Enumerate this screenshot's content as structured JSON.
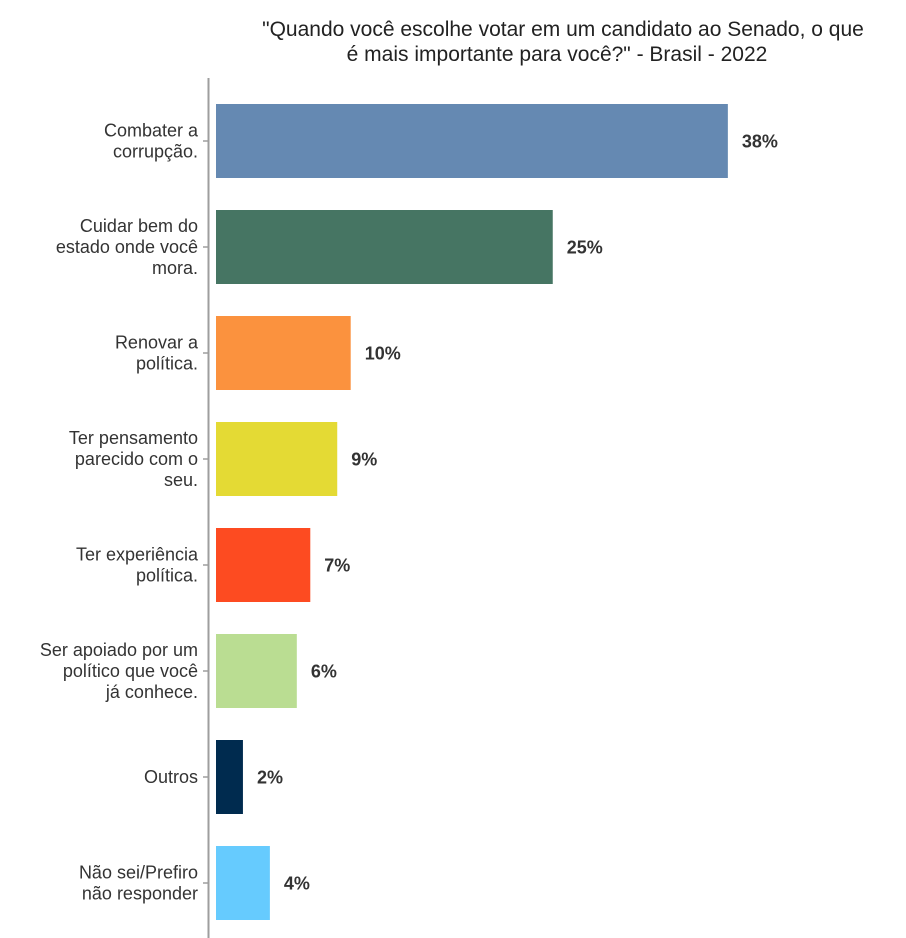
{
  "chart_data": {
    "type": "bar",
    "orientation": "horizontal",
    "title": "\"Quando você escolhe votar em um candidato ao Senado, o que é mais importante para você?\" - Brasil - 2022",
    "title_lines": [
      "\"Quando você escolhe votar em um candidato ao Senado, o que",
      "é mais importante para você?\" - Brasil - 2022"
    ],
    "xlabel": "",
    "ylabel": "",
    "xlim": [
      0,
      40
    ],
    "grid": false,
    "legend": "none",
    "categories": [
      [
        "Combater a",
        "corrupção."
      ],
      [
        "Cuidar bem do",
        "estado onde você",
        "mora."
      ],
      [
        "Renovar a",
        "política."
      ],
      [
        "Ter pensamento",
        "parecido com o",
        "seu."
      ],
      [
        "Ter experiência",
        "política."
      ],
      [
        "Ser apoiado por um",
        "político que você",
        "já conhece."
      ],
      [
        "Outros"
      ],
      [
        "Não sei/Prefiro",
        "não responder"
      ]
    ],
    "values": [
      38,
      25,
      10,
      9,
      7,
      6,
      2,
      4
    ],
    "data_labels": [
      "38%",
      "25%",
      "10%",
      "9%",
      "7%",
      "6%",
      "2%",
      "4%"
    ],
    "colors": [
      "#6589b2",
      "#467563",
      "#fb923e",
      "#e4da34",
      "#fd4b21",
      "#badd92",
      "#002b4f",
      "#66cbfe"
    ],
    "axis_color": "#9e9e9e"
  }
}
